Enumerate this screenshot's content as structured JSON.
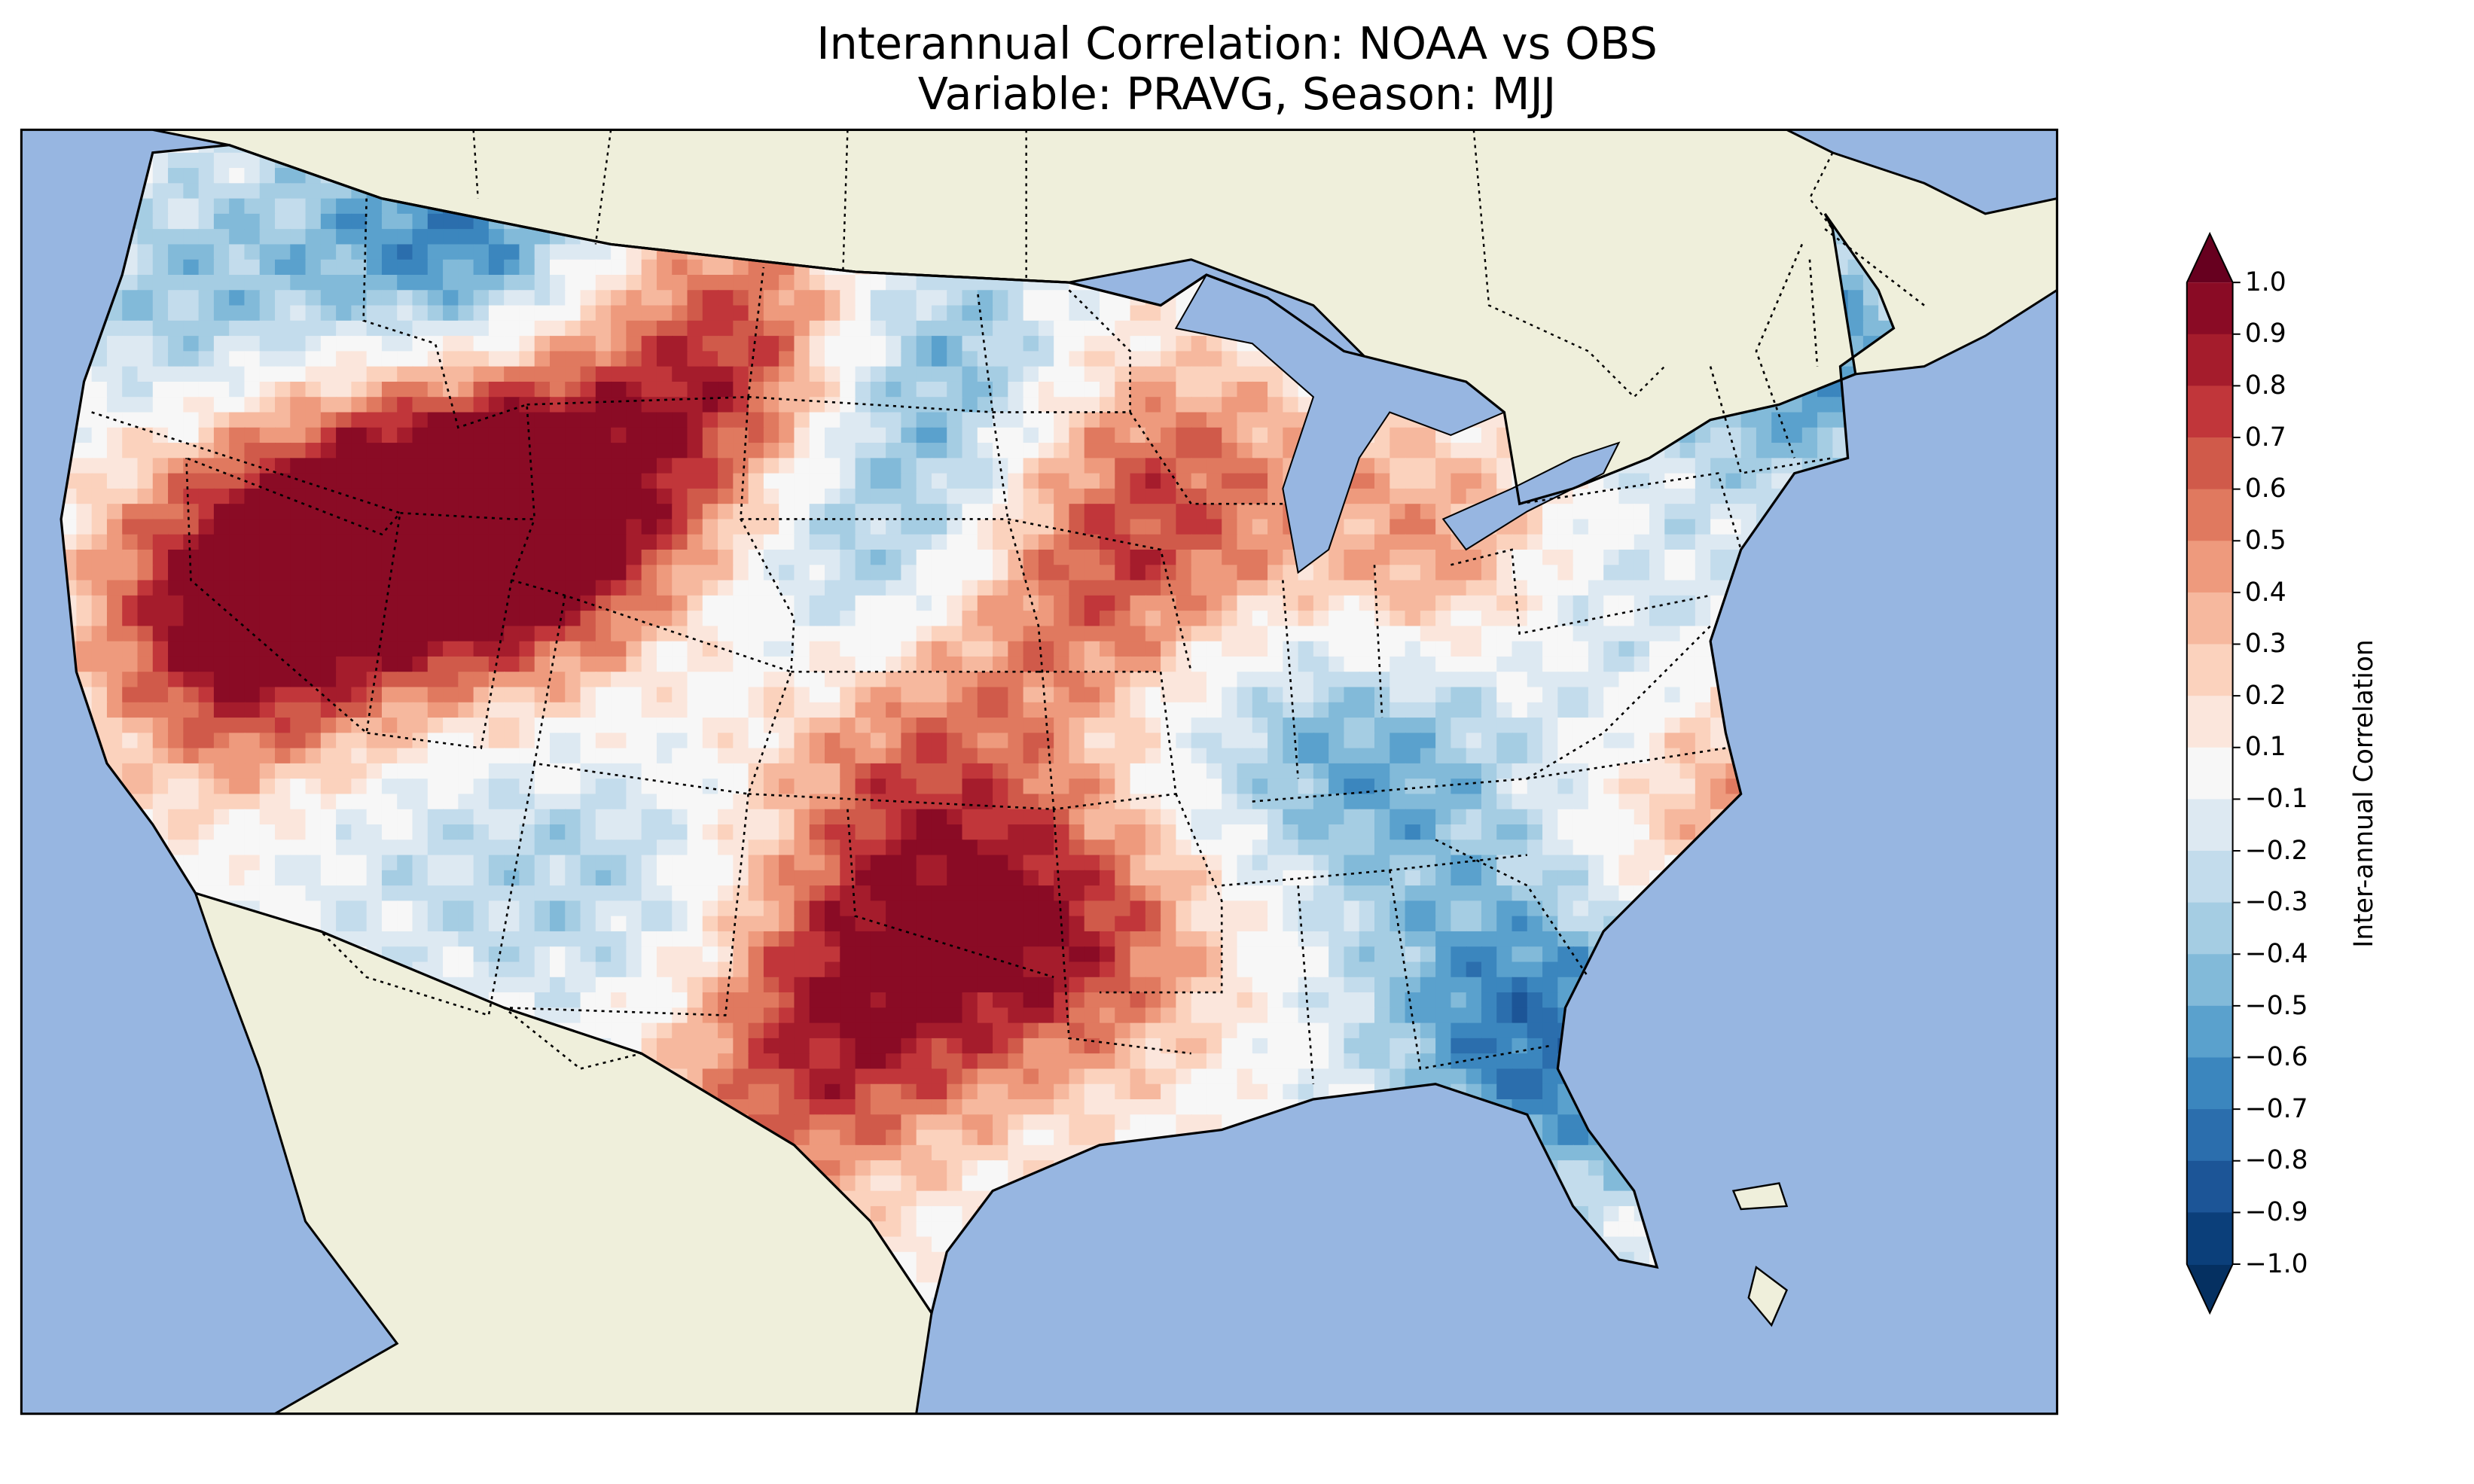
{
  "title_line1": "Interannual Correlation: NOAA vs OBS",
  "title_line2": "Variable: PRAVG, Season: MJJ",
  "colorbar": {
    "label": "Inter-annual Correlation",
    "ticks": [
      "1.0",
      "0.9",
      "0.8",
      "0.7",
      "0.6",
      "0.5",
      "0.4",
      "0.3",
      "0.2",
      "0.1",
      "−0.1",
      "−0.2",
      "−0.3",
      "−0.4",
      "−0.5",
      "−0.6",
      "−0.7",
      "−0.8",
      "−0.9",
      "−1.0"
    ],
    "colors_top_to_bottom": [
      "#67001f",
      "#8a0b25",
      "#a51c2c",
      "#c1363a",
      "#d05a4a",
      "#e0795f",
      "#ee9a7d",
      "#f6b89e",
      "#fbd2bd",
      "#fbe6dc",
      "#f7f7f7",
      "#dde9f2",
      "#c3dcec",
      "#a5cde3",
      "#82bad9",
      "#5aa1cd",
      "#3b86be",
      "#2b6ead",
      "#1c5597",
      "#0b3f7a",
      "#053061"
    ],
    "range": [
      -1.0,
      1.0
    ],
    "extend": "both"
  },
  "map": {
    "projection": "Lambert Conformal (CONUS)",
    "ocean_color": "#97b6e1",
    "land_color": "#efefdb",
    "lake_color": "#97b6e1"
  }
}
